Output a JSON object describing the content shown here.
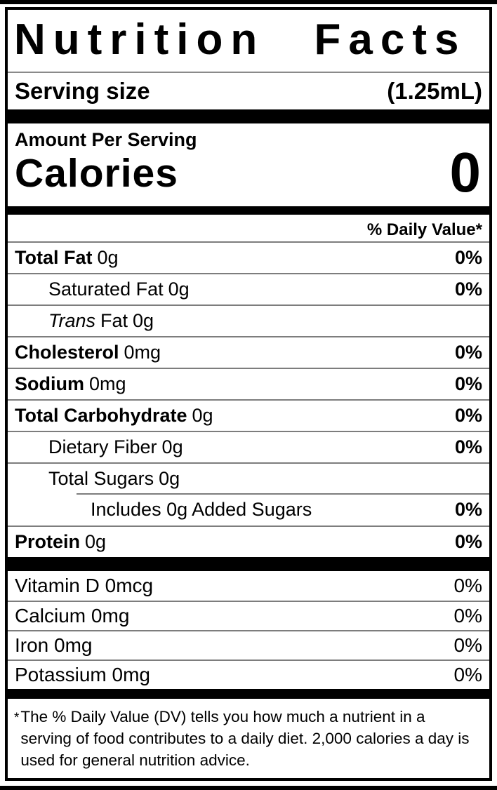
{
  "colors": {
    "text": "#000000",
    "background": "#ffffff",
    "divider_bar": "#000000",
    "separator_line": "#7d7d7d"
  },
  "label": {
    "title": "Nutrition Facts",
    "serving": {
      "label": "Serving size",
      "value": "(1.25mL)"
    },
    "amount_per_serving": "Amount Per Serving",
    "calories": {
      "label": "Calories",
      "value": "0"
    },
    "daily_value_header": "% Daily Value*",
    "nutrients": [
      {
        "name": "Total Fat",
        "amount": "0g",
        "dv": "0%"
      },
      {
        "name": "Saturated Fat",
        "amount": "0g",
        "dv": "0%"
      },
      {
        "name_italic": "Trans",
        "name": "Fat",
        "amount": "0g",
        "dv": ""
      },
      {
        "name": "Cholesterol",
        "amount": "0mg",
        "dv": "0%"
      },
      {
        "name": "Sodium",
        "amount": "0mg",
        "dv": "0%"
      },
      {
        "name": "Total Carbohydrate",
        "amount": "0g",
        "dv": "0%"
      },
      {
        "name": "Dietary Fiber",
        "amount": "0g",
        "dv": "0%"
      },
      {
        "name": "Total Sugars",
        "amount": "0g",
        "dv": ""
      },
      {
        "name": "Includes 0g Added Sugars",
        "amount": "",
        "dv": "0%"
      },
      {
        "name": "Protein",
        "amount": "0g",
        "dv": "0%"
      }
    ],
    "micronutrients": [
      {
        "name": "Vitamin D",
        "amount": "0mcg",
        "dv": "0%"
      },
      {
        "name": "Calcium",
        "amount": "0mg",
        "dv": "0%"
      },
      {
        "name": "Iron",
        "amount": "0mg",
        "dv": "0%"
      },
      {
        "name": "Potassium",
        "amount": "0mg",
        "dv": "0%"
      }
    ],
    "footnote": {
      "asterisk": "*",
      "text": "The % Daily Value (DV) tells you how much a nutrient in a serving of food contributes to a daily diet. 2,000 calories a day is used for general nutrition advice."
    }
  }
}
